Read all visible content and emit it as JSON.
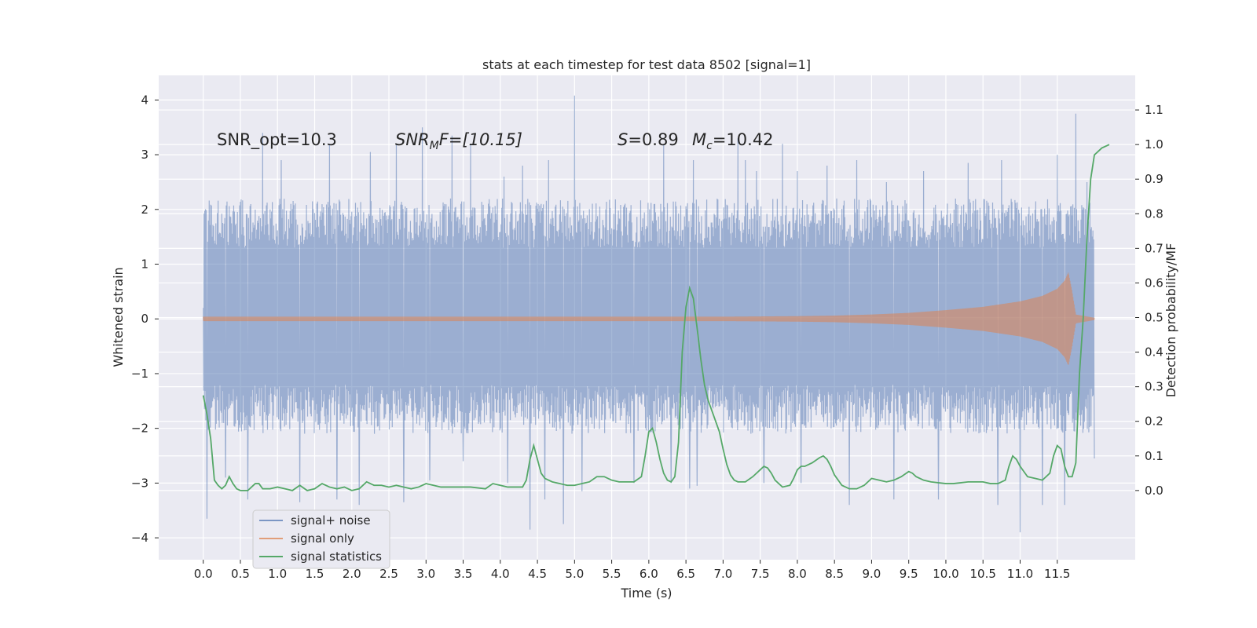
{
  "chart_data": {
    "type": "line",
    "title": "stats at each timestep for test data 8502 [signal=1]",
    "xlabel": "Time (s)",
    "ylabel": "Whitened strain",
    "ylabel_right": "Detection probability/MF",
    "xlim": [
      -0.6,
      12.55
    ],
    "ylim": [
      -4.4,
      4.45
    ],
    "ylim_right": [
      -0.2,
      1.2
    ],
    "xticks": [
      "0.0",
      "0.5",
      "1.0",
      "1.5",
      "2.0",
      "2.5",
      "3.0",
      "3.5",
      "4.0",
      "4.5",
      "5.0",
      "5.5",
      "6.0",
      "6.5",
      "7.0",
      "7.5",
      "8.0",
      "8.5",
      "9.0",
      "9.5",
      "10.0",
      "10.5",
      "11.0",
      "11.5"
    ],
    "yticks": [
      "4",
      "3",
      "2",
      "1",
      "0",
      "−1",
      "−2",
      "−3",
      "−4"
    ],
    "yticks_right": [
      "1.1",
      "1.0",
      "0.9",
      "0.8",
      "0.7",
      "0.6",
      "0.5",
      "0.4",
      "0.3",
      "0.2",
      "0.1",
      "0.0"
    ],
    "grid": true,
    "legend_position": "lower-left",
    "annotations": {
      "snr_opt": "SNR_opt=10.3",
      "snr_mf_sym": "SNR",
      "snr_mf_sub": "M",
      "snr_mf_tail": "F=[10.15]",
      "s_sym": "S",
      "s_val": "=0.89",
      "mc_sym": "M",
      "mc_sub": "c",
      "mc_val": "=10.42"
    },
    "series": [
      {
        "name": "signal+ noise",
        "color": "#4c72b0",
        "opacity": 0.5,
        "t_range": [
          0.0,
          12.0
        ],
        "n_samples": 2400,
        "upper_extreme_points": [
          [
            0.0,
            0.2
          ],
          [
            0.05,
            3.05
          ],
          [
            0.3,
            3.3
          ],
          [
            0.8,
            3.4
          ],
          [
            1.05,
            2.9
          ],
          [
            1.3,
            3.7
          ],
          [
            1.7,
            3.2
          ],
          [
            2.25,
            3.05
          ],
          [
            2.6,
            3.2
          ],
          [
            2.95,
            3.5
          ],
          [
            3.35,
            3.35
          ],
          [
            3.6,
            3.2
          ],
          [
            4.05,
            2.6
          ],
          [
            4.3,
            2.8
          ],
          [
            4.65,
            2.9
          ],
          [
            4.85,
            3.3
          ],
          [
            5.0,
            4.08
          ],
          [
            5.1,
            2.6
          ],
          [
            5.8,
            3.0
          ],
          [
            6.2,
            3.2
          ],
          [
            6.6,
            2.9
          ],
          [
            7.2,
            3.3
          ],
          [
            7.3,
            2.9
          ],
          [
            7.45,
            2.7
          ],
          [
            7.8,
            3.2
          ],
          [
            8.0,
            2.7
          ],
          [
            8.4,
            2.8
          ],
          [
            8.8,
            2.9
          ],
          [
            9.2,
            2.5
          ],
          [
            9.7,
            2.7
          ],
          [
            10.3,
            2.85
          ],
          [
            10.75,
            2.9
          ],
          [
            11.0,
            2.8
          ],
          [
            11.5,
            3.0
          ],
          [
            11.6,
            2.4
          ],
          [
            11.75,
            3.75
          ],
          [
            11.9,
            2.5
          ],
          [
            12.0,
            2.8
          ]
        ],
        "lower_extreme_points": [
          [
            0.05,
            -3.65
          ],
          [
            0.3,
            -2.9
          ],
          [
            0.6,
            -3.3
          ],
          [
            1.3,
            -3.35
          ],
          [
            1.8,
            -3.3
          ],
          [
            2.1,
            -3.4
          ],
          [
            2.7,
            -3.35
          ],
          [
            3.05,
            -2.95
          ],
          [
            3.5,
            -2.6
          ],
          [
            4.1,
            -3.0
          ],
          [
            4.4,
            -3.85
          ],
          [
            4.6,
            -3.3
          ],
          [
            4.85,
            -3.75
          ],
          [
            5.1,
            -3.15
          ],
          [
            5.8,
            -3.0
          ],
          [
            6.3,
            -3.0
          ],
          [
            6.55,
            -3.1
          ],
          [
            6.65,
            -3.05
          ],
          [
            7.55,
            -3.0
          ],
          [
            8.05,
            -3.0
          ],
          [
            8.7,
            -3.4
          ],
          [
            9.3,
            -3.3
          ],
          [
            9.9,
            -3.3
          ],
          [
            10.7,
            -3.4
          ],
          [
            11.0,
            -3.9
          ],
          [
            11.3,
            -3.4
          ],
          [
            11.6,
            -3.4
          ],
          [
            12.0,
            -2.55
          ]
        ]
      },
      {
        "name": "signal only",
        "color": "#dd8452",
        "opacity": 0.55,
        "amplitude_envelope": [
          [
            0.0,
            0.04
          ],
          [
            2.0,
            0.04
          ],
          [
            4.0,
            0.04
          ],
          [
            6.0,
            0.04
          ],
          [
            7.0,
            0.04
          ],
          [
            8.0,
            0.05
          ],
          [
            8.5,
            0.06
          ],
          [
            9.0,
            0.08
          ],
          [
            9.5,
            0.11
          ],
          [
            10.0,
            0.16
          ],
          [
            10.5,
            0.22
          ],
          [
            11.0,
            0.32
          ],
          [
            11.3,
            0.42
          ],
          [
            11.5,
            0.55
          ],
          [
            11.6,
            0.7
          ],
          [
            11.65,
            0.85
          ],
          [
            11.7,
            0.5
          ],
          [
            11.75,
            0.08
          ],
          [
            12.0,
            0.02
          ]
        ]
      },
      {
        "name": "signal statistics",
        "color": "#55a868",
        "axis": "right",
        "points": [
          [
            0.0,
            0.275
          ],
          [
            0.05,
            0.22
          ],
          [
            0.1,
            0.15
          ],
          [
            0.15,
            0.03
          ],
          [
            0.2,
            0.015
          ],
          [
            0.25,
            0.005
          ],
          [
            0.3,
            0.015
          ],
          [
            0.35,
            0.04
          ],
          [
            0.4,
            0.02
          ],
          [
            0.45,
            0.005
          ],
          [
            0.5,
            0.0
          ],
          [
            0.6,
            0.0
          ],
          [
            0.65,
            0.01
          ],
          [
            0.7,
            0.02
          ],
          [
            0.75,
            0.02
          ],
          [
            0.8,
            0.005
          ],
          [
            0.9,
            0.005
          ],
          [
            1.0,
            0.01
          ],
          [
            1.1,
            0.005
          ],
          [
            1.2,
            0.0
          ],
          [
            1.3,
            0.015
          ],
          [
            1.4,
            0.0
          ],
          [
            1.5,
            0.005
          ],
          [
            1.6,
            0.02
          ],
          [
            1.7,
            0.01
          ],
          [
            1.8,
            0.005
          ],
          [
            1.9,
            0.01
          ],
          [
            2.0,
            0.0
          ],
          [
            2.1,
            0.005
          ],
          [
            2.2,
            0.025
          ],
          [
            2.3,
            0.015
          ],
          [
            2.4,
            0.015
          ],
          [
            2.5,
            0.01
          ],
          [
            2.6,
            0.015
          ],
          [
            2.7,
            0.01
          ],
          [
            2.8,
            0.005
          ],
          [
            2.9,
            0.01
          ],
          [
            3.0,
            0.02
          ],
          [
            3.1,
            0.015
          ],
          [
            3.2,
            0.01
          ],
          [
            3.4,
            0.01
          ],
          [
            3.6,
            0.01
          ],
          [
            3.8,
            0.005
          ],
          [
            3.9,
            0.02
          ],
          [
            4.0,
            0.015
          ],
          [
            4.1,
            0.01
          ],
          [
            4.2,
            0.01
          ],
          [
            4.3,
            0.01
          ],
          [
            4.35,
            0.03
          ],
          [
            4.4,
            0.09
          ],
          [
            4.45,
            0.13
          ],
          [
            4.5,
            0.09
          ],
          [
            4.55,
            0.05
          ],
          [
            4.6,
            0.035
          ],
          [
            4.7,
            0.025
          ],
          [
            4.8,
            0.02
          ],
          [
            4.9,
            0.015
          ],
          [
            5.0,
            0.015
          ],
          [
            5.1,
            0.02
          ],
          [
            5.2,
            0.025
          ],
          [
            5.3,
            0.04
          ],
          [
            5.4,
            0.04
          ],
          [
            5.5,
            0.03
          ],
          [
            5.6,
            0.025
          ],
          [
            5.7,
            0.025
          ],
          [
            5.8,
            0.025
          ],
          [
            5.9,
            0.04
          ],
          [
            5.95,
            0.1
          ],
          [
            6.0,
            0.17
          ],
          [
            6.05,
            0.18
          ],
          [
            6.1,
            0.14
          ],
          [
            6.15,
            0.09
          ],
          [
            6.2,
            0.05
          ],
          [
            6.25,
            0.03
          ],
          [
            6.3,
            0.025
          ],
          [
            6.35,
            0.04
          ],
          [
            6.4,
            0.14
          ],
          [
            6.45,
            0.4
          ],
          [
            6.5,
            0.53
          ],
          [
            6.55,
            0.585
          ],
          [
            6.6,
            0.555
          ],
          [
            6.65,
            0.47
          ],
          [
            6.7,
            0.38
          ],
          [
            6.75,
            0.305
          ],
          [
            6.8,
            0.26
          ],
          [
            6.85,
            0.23
          ],
          [
            6.9,
            0.2
          ],
          [
            6.95,
            0.17
          ],
          [
            7.0,
            0.12
          ],
          [
            7.05,
            0.075
          ],
          [
            7.1,
            0.045
          ],
          [
            7.15,
            0.03
          ],
          [
            7.2,
            0.025
          ],
          [
            7.3,
            0.025
          ],
          [
            7.4,
            0.04
          ],
          [
            7.5,
            0.06
          ],
          [
            7.55,
            0.07
          ],
          [
            7.6,
            0.065
          ],
          [
            7.65,
            0.05
          ],
          [
            7.7,
            0.03
          ],
          [
            7.8,
            0.01
          ],
          [
            7.9,
            0.015
          ],
          [
            7.95,
            0.035
          ],
          [
            8.0,
            0.06
          ],
          [
            8.05,
            0.07
          ],
          [
            8.1,
            0.07
          ],
          [
            8.15,
            0.075
          ],
          [
            8.2,
            0.08
          ],
          [
            8.3,
            0.095
          ],
          [
            8.35,
            0.1
          ],
          [
            8.4,
            0.09
          ],
          [
            8.45,
            0.07
          ],
          [
            8.5,
            0.045
          ],
          [
            8.55,
            0.03
          ],
          [
            8.6,
            0.015
          ],
          [
            8.7,
            0.005
          ],
          [
            8.8,
            0.005
          ],
          [
            8.9,
            0.015
          ],
          [
            9.0,
            0.035
          ],
          [
            9.1,
            0.03
          ],
          [
            9.2,
            0.025
          ],
          [
            9.3,
            0.03
          ],
          [
            9.4,
            0.04
          ],
          [
            9.5,
            0.055
          ],
          [
            9.55,
            0.05
          ],
          [
            9.6,
            0.04
          ],
          [
            9.7,
            0.03
          ],
          [
            9.8,
            0.025
          ],
          [
            10.0,
            0.02
          ],
          [
            10.1,
            0.02
          ],
          [
            10.3,
            0.025
          ],
          [
            10.5,
            0.025
          ],
          [
            10.6,
            0.02
          ],
          [
            10.7,
            0.02
          ],
          [
            10.8,
            0.03
          ],
          [
            10.85,
            0.07
          ],
          [
            10.9,
            0.1
          ],
          [
            10.95,
            0.09
          ],
          [
            11.0,
            0.07
          ],
          [
            11.1,
            0.04
          ],
          [
            11.2,
            0.035
          ],
          [
            11.3,
            0.03
          ],
          [
            11.4,
            0.05
          ],
          [
            11.45,
            0.1
          ],
          [
            11.5,
            0.13
          ],
          [
            11.55,
            0.12
          ],
          [
            11.6,
            0.07
          ],
          [
            11.65,
            0.04
          ],
          [
            11.7,
            0.04
          ],
          [
            11.75,
            0.08
          ],
          [
            11.8,
            0.34
          ],
          [
            11.85,
            0.5
          ],
          [
            11.9,
            0.73
          ],
          [
            11.95,
            0.9
          ],
          [
            12.0,
            0.97
          ],
          [
            12.1,
            0.99
          ],
          [
            12.2,
            1.0
          ]
        ]
      }
    ]
  }
}
